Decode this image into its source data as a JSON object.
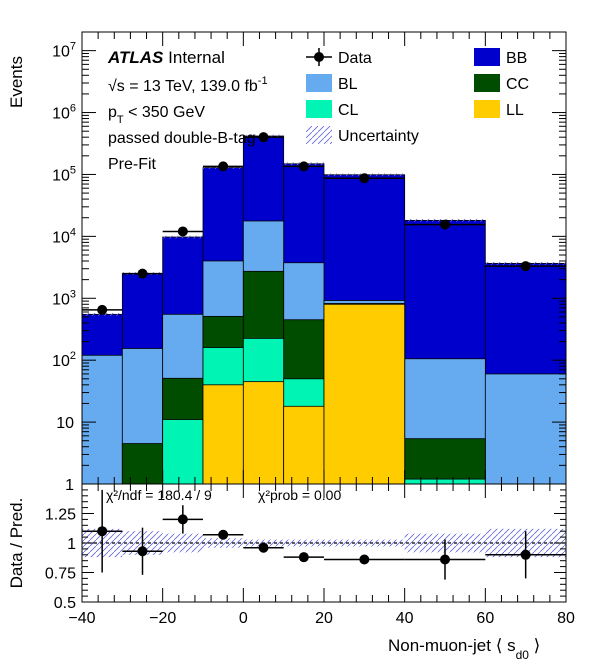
{
  "chart_data": [
    {
      "type": "bar",
      "stacked": true,
      "log_y": true,
      "ylabel": "Events",
      "xlim": [
        -40,
        80
      ],
      "ylim": [
        1,
        20000000
      ],
      "bin_edges": [
        -40,
        -30,
        -20,
        -10,
        0,
        10,
        20,
        40,
        60,
        80
      ],
      "series": [
        {
          "name": "LL",
          "color": "#ffcc00",
          "values": [
            0,
            0,
            0,
            40,
            45,
            18,
            800,
            0,
            0
          ]
        },
        {
          "name": "CL",
          "color": "#00f5b4",
          "values": [
            0,
            0,
            11,
            120,
            180,
            32,
            20,
            1.2,
            0
          ]
        },
        {
          "name": "CC",
          "color": "#004d00",
          "values": [
            0,
            4.5,
            40,
            350,
            2500,
            400,
            0,
            4.2,
            0
          ]
        },
        {
          "name": "BL",
          "color": "#66aaf0",
          "values": [
            120,
            150,
            500,
            3500,
            15000,
            3300,
            100,
            100,
            60
          ]
        },
        {
          "name": "BB",
          "color": "#0000cc",
          "values": [
            430,
            2350,
            9200,
            125000,
            400000,
            145000,
            98000,
            18000,
            3600
          ]
        }
      ],
      "data_series": {
        "name": "Data",
        "x": [
          -35,
          -25,
          -15,
          -5,
          5,
          15,
          30,
          50,
          70
        ],
        "values": [
          650,
          2500,
          12000,
          135000,
          400000,
          135000,
          87000,
          15500,
          3300
        ]
      },
      "legend": [
        "Data",
        "BB",
        "BL",
        "CC",
        "CL",
        "LL",
        "Uncertainty"
      ],
      "annotations": {
        "atlas": "ATLAS",
        "internal": "Internal",
        "energy": "√s = 13 TeV, 139.0 fb",
        "energy_sup": "-1",
        "pt_prefix": "p",
        "pt_sub": "T",
        "pt_suffix": " < 350 GeV",
        "tag": "passed double-B-tag",
        "fit": "Pre-Fit"
      },
      "y_ticks": [
        "1",
        "10",
        "10^2",
        "10^3",
        "10^4",
        "10^5",
        "10^6",
        "10^7"
      ]
    },
    {
      "type": "scatter",
      "ylabel": "Data / Pred.",
      "xlabel": "Non-muon-jet ⟨ s",
      "xlabel_sub": "d0",
      "xlabel_end": " ⟩",
      "xlim": [
        -40,
        80
      ],
      "ylim": [
        0.5,
        1.5
      ],
      "x_ticks": [
        -40,
        -20,
        0,
        20,
        40,
        60,
        80
      ],
      "y_ticks": [
        "0.5",
        "0.75",
        "1",
        "1.25"
      ],
      "x": [
        -35,
        -25,
        -15,
        -5,
        5,
        15,
        30,
        50,
        70
      ],
      "xerr": [
        5,
        5,
        5,
        5,
        5,
        5,
        10,
        10,
        10
      ],
      "values": [
        1.1,
        0.93,
        1.2,
        1.07,
        0.96,
        0.88,
        0.86,
        0.86,
        0.9
      ],
      "yerr": [
        0.35,
        0.2,
        0.12,
        0.03,
        0.02,
        0.02,
        0.02,
        0.17,
        0.2
      ],
      "unc_band": [
        0.12,
        0.1,
        0.08,
        0.04,
        0.03,
        0.03,
        0.03,
        0.08,
        0.12
      ],
      "chi2_label": "χ²/ndf = 180.4 / 9",
      "prob_label": "χ²prob = 0.00"
    }
  ]
}
